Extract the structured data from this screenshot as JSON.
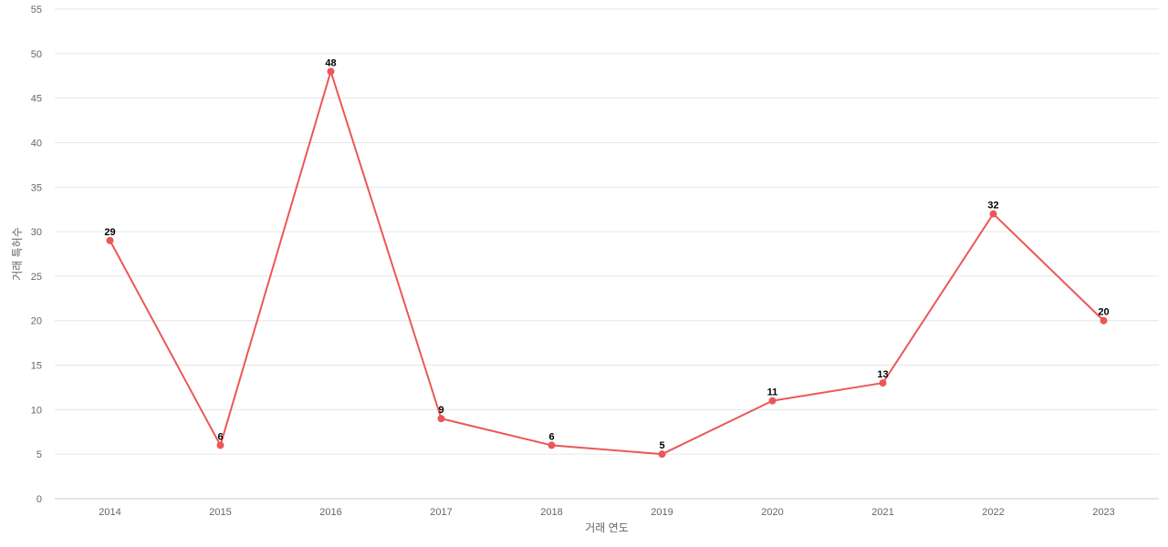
{
  "chart_data": {
    "type": "line",
    "title": "",
    "xlabel": "거래 연도",
    "ylabel": "거래 특허수",
    "x": [
      "2014",
      "2015",
      "2016",
      "2017",
      "2018",
      "2019",
      "2020",
      "2021",
      "2022",
      "2023"
    ],
    "series": [
      {
        "values": [
          29,
          6,
          48,
          9,
          6,
          5,
          11,
          13,
          32,
          20
        ],
        "color": "#eb5757"
      }
    ],
    "ylim": [
      0,
      55
    ],
    "yticks": [
      "0",
      "5",
      "10",
      "15",
      "20",
      "25",
      "30",
      "35",
      "40",
      "45",
      "50",
      "55"
    ],
    "grid": true,
    "legend": "none",
    "data_labels": true
  }
}
